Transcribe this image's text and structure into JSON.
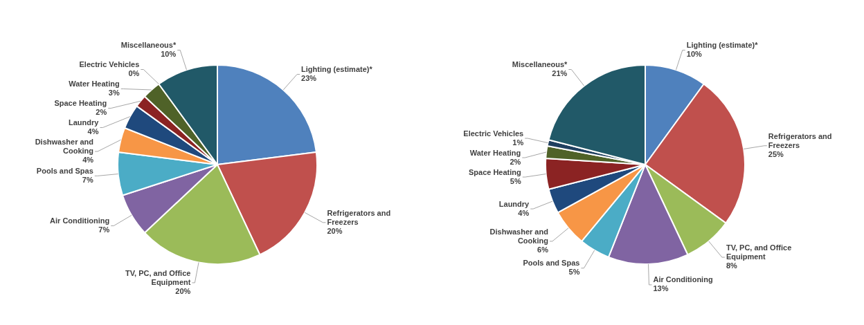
{
  "chart_data": [
    {
      "type": "pie",
      "categories": [
        "Lighting (estimate)*",
        "Refrigerators and Freezers",
        "TV, PC, and Office Equipment",
        "Air Conditioning",
        "Pools and Spas",
        "Dishwasher and Cooking",
        "Laundry",
        "Space Heating",
        "Water Heating",
        "Electric Vehicles",
        "Miscellaneous*"
      ],
      "values": [
        23,
        20,
        20,
        7,
        7,
        4,
        4,
        2,
        3,
        0,
        10
      ],
      "value_labels": [
        "23%",
        "20%",
        "20%",
        "7%",
        "7%",
        "4%",
        "4%",
        "2%",
        "3%",
        "0%",
        "10%"
      ],
      "colors": [
        "#4f81bd",
        "#c0504d",
        "#9bbb59",
        "#8064a2",
        "#4bacc6",
        "#f79646",
        "#1f497d",
        "#8b2323",
        "#4f6228",
        "#948a54",
        "#215968"
      ]
    },
    {
      "type": "pie",
      "categories": [
        "Lighting (estimate)*",
        "Refrigerators and Freezers",
        "TV, PC, and Office Equipment",
        "Air Conditioning",
        "Pools and Spas",
        "Dishwasher and Cooking",
        "Laundry",
        "Space Heating",
        "Water Heating",
        "Electric Vehicles",
        "Miscellaneous*"
      ],
      "values": [
        10,
        25,
        8,
        13,
        5,
        6,
        4,
        5,
        2,
        1,
        21
      ],
      "value_labels": [
        "10%",
        "25%",
        "8%",
        "13%",
        "5%",
        "6%",
        "4%",
        "5%",
        "2%",
        "1%",
        "21%"
      ],
      "colors": [
        "#4f81bd",
        "#c0504d",
        "#9bbb59",
        "#8064a2",
        "#4bacc6",
        "#f79646",
        "#1f497d",
        "#8b2323",
        "#4f6228",
        "#1f3f5f",
        "#215968"
      ]
    }
  ]
}
